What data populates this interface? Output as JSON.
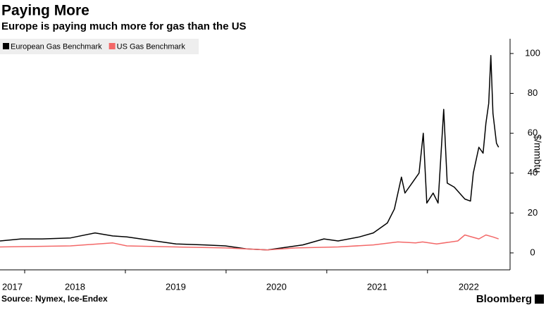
{
  "chart_data": {
    "type": "line",
    "title": "Paying More",
    "subtitle": "Europe is paying much more for gas than the US",
    "source": "Source: Nymex, Ice-Endex",
    "brand": "Bloomberg",
    "y_axis_label": "$/mmbtu",
    "legend_position": "top-left",
    "grid": false,
    "xlim": [
      2017.755,
      2022.82
    ],
    "xticks": [
      2017,
      2018,
      2019,
      2020,
      2021,
      2022
    ],
    "ylim": [
      -8.5,
      107.4
    ],
    "yticks": [
      0,
      20,
      40,
      60,
      80,
      100
    ],
    "series": [
      {
        "name": "European Gas Benchmark",
        "color": "#000000",
        "x": [
          2017.755,
          2017.965,
          2018.175,
          2018.455,
          2018.699,
          2018.874,
          2019.014,
          2019.294,
          2019.503,
          2019.783,
          2019.993,
          2020.203,
          2020.413,
          2020.552,
          2020.762,
          2020.972,
          2021.112,
          2021.322,
          2021.462,
          2021.601,
          2021.671,
          2021.741,
          2021.776,
          2021.846,
          2021.916,
          2021.958,
          2021.993,
          2022.056,
          2022.105,
          2022.161,
          2022.196,
          2022.266,
          2022.371,
          2022.427,
          2022.455,
          2022.51,
          2022.552,
          2022.58,
          2022.608,
          2022.629,
          2022.65,
          2022.685,
          2022.706
        ],
        "values": [
          6,
          7,
          7,
          7.5,
          10,
          8.5,
          8,
          6,
          4.5,
          4,
          3.5,
          2,
          1.5,
          2.5,
          4,
          7,
          6,
          8,
          10,
          15,
          22,
          38,
          30,
          35,
          40,
          60,
          25,
          30,
          25,
          72,
          35,
          33,
          27,
          26,
          40,
          53,
          50,
          65,
          75,
          99,
          70,
          55,
          53
        ]
      },
      {
        "name": "US Gas Benchmark",
        "color": "#f36868",
        "x": [
          2017.755,
          2018.455,
          2018.874,
          2019.014,
          2019.503,
          2019.993,
          2020.413,
          2020.692,
          2021.112,
          2021.462,
          2021.706,
          2021.881,
          2021.951,
          2022.091,
          2022.301,
          2022.371,
          2022.51,
          2022.58,
          2022.65,
          2022.706
        ],
        "values": [
          3,
          3.5,
          5,
          3.5,
          3,
          2.5,
          1.5,
          2.5,
          3,
          4,
          5.5,
          5,
          5.5,
          4.5,
          6,
          9,
          7,
          9,
          8,
          7
        ]
      }
    ]
  }
}
